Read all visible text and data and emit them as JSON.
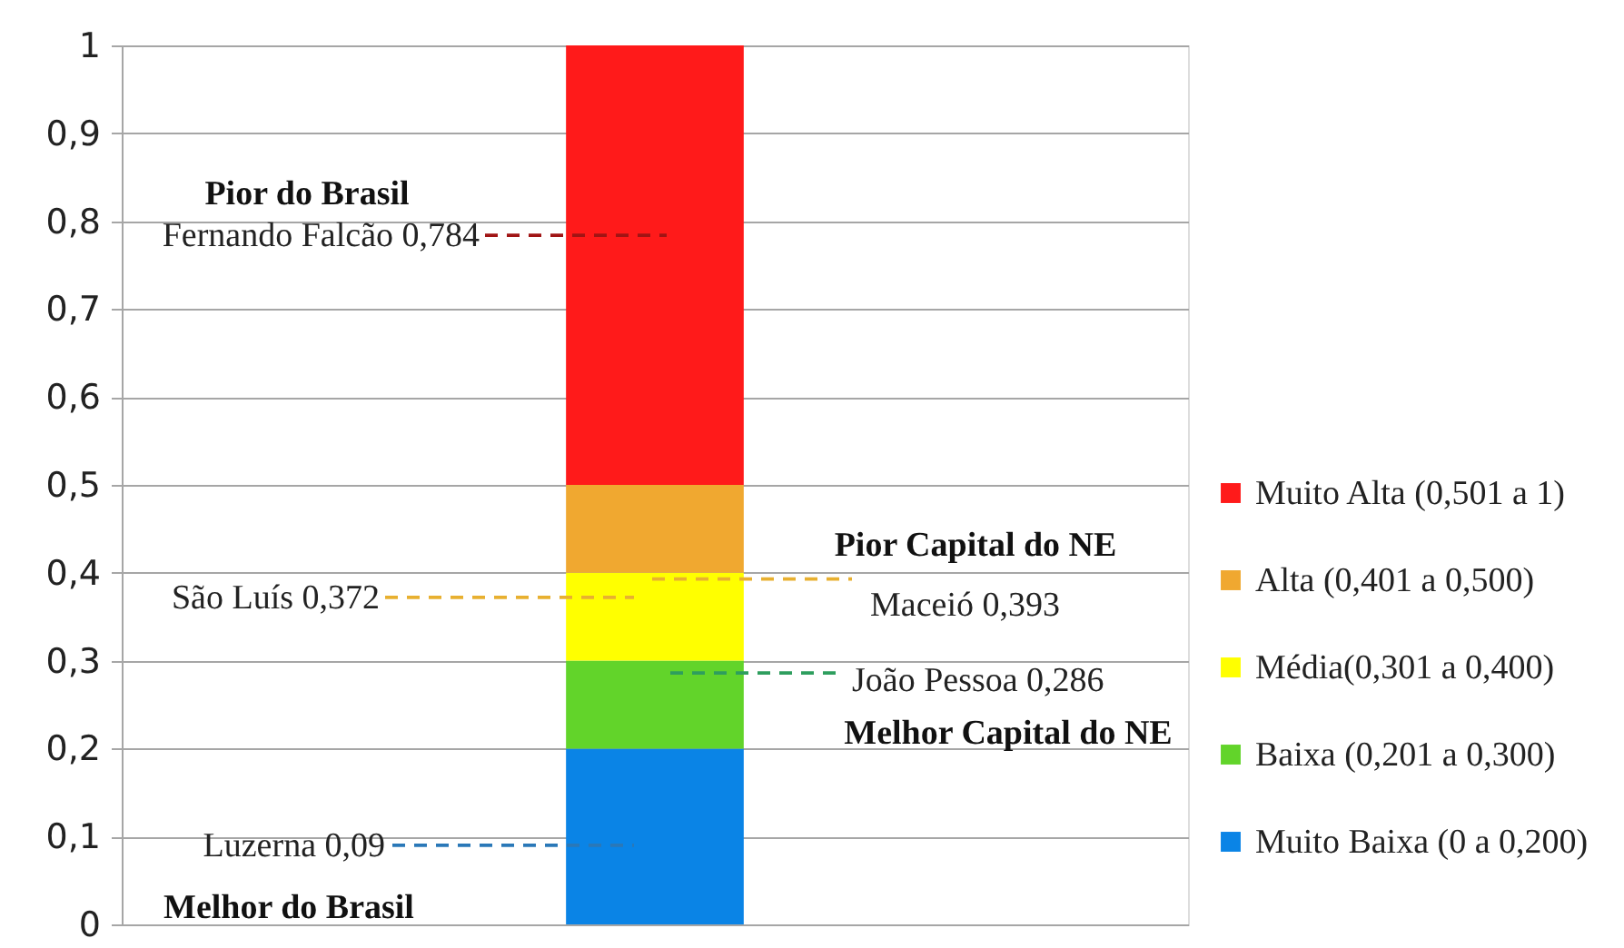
{
  "chart_data": {
    "type": "bar",
    "stacked": true,
    "categories": [
      null
    ],
    "series": [
      {
        "name": "Muito Baixa (0 a 0,200)",
        "color": "#0a84e6",
        "values": [
          0.2
        ]
      },
      {
        "name": "Baixa (0,201 a 0,300)",
        "color": "#62d42a",
        "values": [
          0.1
        ]
      },
      {
        "name": "Média(0,301 a 0,400)",
        "color": "#ffff00",
        "values": [
          0.1
        ]
      },
      {
        "name": "Alta (0,401 a 0,500)",
        "color": "#f0a830",
        "values": [
          0.1
        ]
      },
      {
        "name": "Muito Alta (0,501 a 1)",
        "color": "#ff1a1a",
        "values": [
          0.5
        ]
      }
    ],
    "ylim": [
      0,
      1
    ],
    "yticks": [
      0,
      {
        "value": 0.1,
        "label": "0,1"
      },
      {
        "value": 0.2,
        "label": "0,2"
      },
      {
        "value": 0.3,
        "label": "0,3"
      },
      {
        "value": 0.4,
        "label": "0,4"
      },
      {
        "value": 0.5,
        "label": "0,5"
      },
      {
        "value": 0.6,
        "label": "0,6"
      },
      {
        "value": 0.7,
        "label": "0,7"
      },
      {
        "value": 0.8,
        "label": "0,8"
      },
      {
        "value": 0.9,
        "label": "0,9"
      },
      1
    ],
    "grid": "y",
    "legend": "right",
    "tick_labels": "y",
    "ref_lines": [
      {
        "axis": "y",
        "value": 0.784,
        "label": "Fernando Falcão 0,784",
        "color": "#a01414",
        "line_style": "dashed"
      },
      {
        "axis": "y",
        "value": 0.372,
        "label": "São Luís 0,372",
        "color": "#e8b030",
        "line_style": "dashed"
      },
      {
        "axis": "y",
        "value": 0.393,
        "label": "Maceió 0,393",
        "color": "#e8b030",
        "line_style": "dashed"
      },
      {
        "axis": "y",
        "value": 0.286,
        "label": "João Pessoa 0,286",
        "color": "#2e9e5e",
        "line_style": "dashed"
      },
      {
        "axis": "y",
        "value": 0.09,
        "label": "Luzerna 0,09",
        "color": "#2a78b8",
        "line_style": "dashed"
      }
    ],
    "annotations": [
      "Pior do Brasil",
      "Pior Capital do NE",
      "Melhor Capital do NE",
      "Melhor do Brasil"
    ]
  }
}
